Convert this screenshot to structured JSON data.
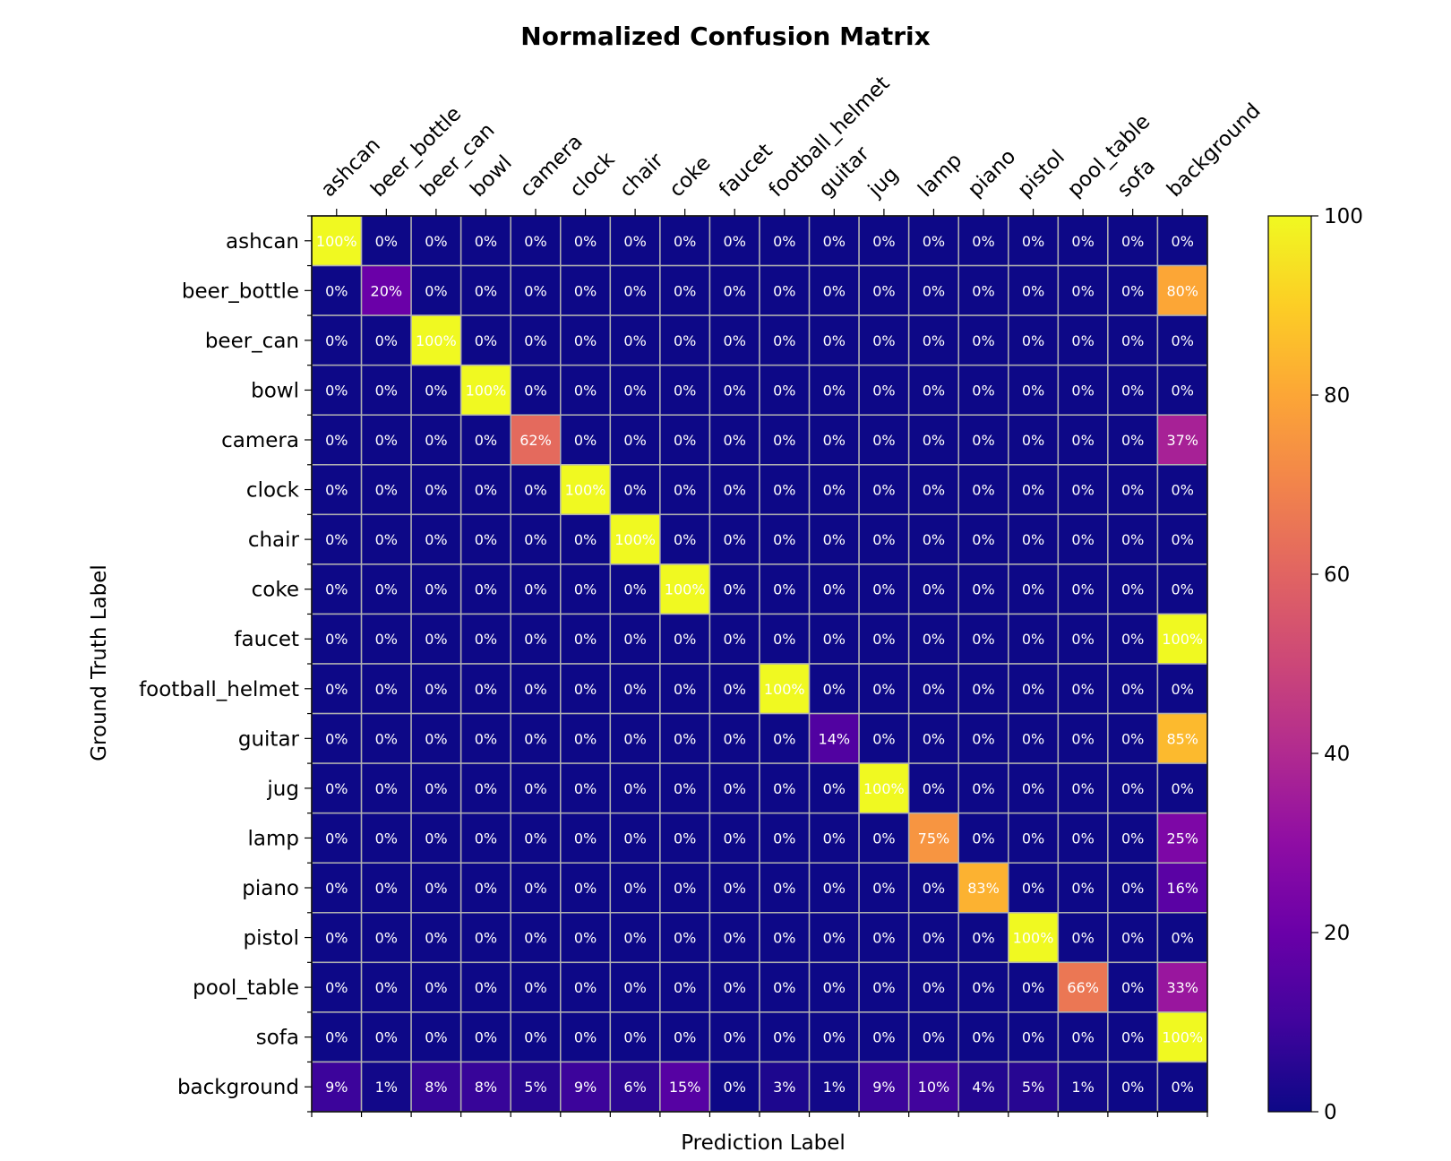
{
  "chart_data": {
    "type": "heatmap",
    "title": "Normalized Confusion Matrix",
    "xlabel": "Prediction Label",
    "ylabel": "Ground Truth Label",
    "colormap": "plasma",
    "cell_text_color": "#ffffff",
    "grid_color": "#b0b0b0",
    "x_categories": [
      "ashcan",
      "beer_bottle",
      "beer_can",
      "bowl",
      "camera",
      "clock",
      "chair",
      "coke",
      "faucet",
      "football_helmet",
      "guitar",
      "jug",
      "lamp",
      "piano",
      "pistol",
      "pool_table",
      "sofa",
      "background"
    ],
    "y_categories": [
      "ashcan",
      "beer_bottle",
      "beer_can",
      "bowl",
      "camera",
      "clock",
      "chair",
      "coke",
      "faucet",
      "football_helmet",
      "guitar",
      "jug",
      "lamp",
      "piano",
      "pistol",
      "pool_table",
      "sofa",
      "background"
    ],
    "values": [
      [
        100,
        0,
        0,
        0,
        0,
        0,
        0,
        0,
        0,
        0,
        0,
        0,
        0,
        0,
        0,
        0,
        0,
        0
      ],
      [
        0,
        20,
        0,
        0,
        0,
        0,
        0,
        0,
        0,
        0,
        0,
        0,
        0,
        0,
        0,
        0,
        0,
        80
      ],
      [
        0,
        0,
        100,
        0,
        0,
        0,
        0,
        0,
        0,
        0,
        0,
        0,
        0,
        0,
        0,
        0,
        0,
        0
      ],
      [
        0,
        0,
        0,
        100,
        0,
        0,
        0,
        0,
        0,
        0,
        0,
        0,
        0,
        0,
        0,
        0,
        0,
        0
      ],
      [
        0,
        0,
        0,
        0,
        62,
        0,
        0,
        0,
        0,
        0,
        0,
        0,
        0,
        0,
        0,
        0,
        0,
        37
      ],
      [
        0,
        0,
        0,
        0,
        0,
        100,
        0,
        0,
        0,
        0,
        0,
        0,
        0,
        0,
        0,
        0,
        0,
        0
      ],
      [
        0,
        0,
        0,
        0,
        0,
        0,
        100,
        0,
        0,
        0,
        0,
        0,
        0,
        0,
        0,
        0,
        0,
        0
      ],
      [
        0,
        0,
        0,
        0,
        0,
        0,
        0,
        100,
        0,
        0,
        0,
        0,
        0,
        0,
        0,
        0,
        0,
        0
      ],
      [
        0,
        0,
        0,
        0,
        0,
        0,
        0,
        0,
        0,
        0,
        0,
        0,
        0,
        0,
        0,
        0,
        0,
        100
      ],
      [
        0,
        0,
        0,
        0,
        0,
        0,
        0,
        0,
        0,
        100,
        0,
        0,
        0,
        0,
        0,
        0,
        0,
        0
      ],
      [
        0,
        0,
        0,
        0,
        0,
        0,
        0,
        0,
        0,
        0,
        14,
        0,
        0,
        0,
        0,
        0,
        0,
        85
      ],
      [
        0,
        0,
        0,
        0,
        0,
        0,
        0,
        0,
        0,
        0,
        0,
        100,
        0,
        0,
        0,
        0,
        0,
        0
      ],
      [
        0,
        0,
        0,
        0,
        0,
        0,
        0,
        0,
        0,
        0,
        0,
        0,
        75,
        0,
        0,
        0,
        0,
        25
      ],
      [
        0,
        0,
        0,
        0,
        0,
        0,
        0,
        0,
        0,
        0,
        0,
        0,
        0,
        83,
        0,
        0,
        0,
        16
      ],
      [
        0,
        0,
        0,
        0,
        0,
        0,
        0,
        0,
        0,
        0,
        0,
        0,
        0,
        0,
        100,
        0,
        0,
        0
      ],
      [
        0,
        0,
        0,
        0,
        0,
        0,
        0,
        0,
        0,
        0,
        0,
        0,
        0,
        0,
        0,
        66,
        0,
        33
      ],
      [
        0,
        0,
        0,
        0,
        0,
        0,
        0,
        0,
        0,
        0,
        0,
        0,
        0,
        0,
        0,
        0,
        0,
        100
      ],
      [
        9,
        1,
        8,
        8,
        5,
        9,
        6,
        15,
        0,
        3,
        1,
        9,
        10,
        4,
        5,
        1,
        0,
        0
      ]
    ],
    "value_suffix": "%",
    "colorbar": {
      "min": 0,
      "max": 100,
      "ticks": [
        0,
        20,
        40,
        60,
        80,
        100
      ]
    }
  }
}
